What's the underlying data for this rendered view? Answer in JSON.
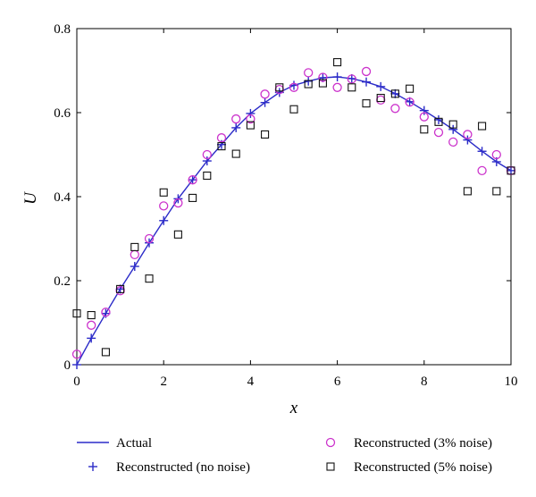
{
  "chart_data": {
    "type": "line",
    "xlabel": "x",
    "ylabel": "U",
    "xlim": [
      0,
      10
    ],
    "ylim": [
      0,
      0.8
    ],
    "xticks": [
      0,
      2,
      4,
      6,
      8,
      10
    ],
    "yticks": [
      0,
      0.2,
      0.4,
      0.6,
      0.8
    ],
    "ytick_labels": [
      "0",
      "0.2",
      "0.4",
      "0.6",
      "0.8"
    ],
    "grid": false,
    "legend_position": "bottom",
    "series": [
      {
        "name": "Actual",
        "style": "line",
        "color": "#2b2bc8",
        "x": [
          0,
          0.333,
          0.667,
          1.0,
          1.333,
          1.667,
          2.0,
          2.333,
          2.667,
          3.0,
          3.333,
          3.667,
          4.0,
          4.333,
          4.667,
          5.0,
          5.333,
          5.667,
          6.0,
          6.333,
          6.667,
          7.0,
          7.333,
          7.667,
          8.0,
          8.333,
          8.667,
          9.0,
          9.333,
          9.667,
          10.0
        ],
        "y": [
          0.0,
          0.063,
          0.122,
          0.18,
          0.234,
          0.29,
          0.343,
          0.395,
          0.44,
          0.485,
          0.524,
          0.564,
          0.598,
          0.624,
          0.648,
          0.665,
          0.675,
          0.683,
          0.685,
          0.681,
          0.673,
          0.662,
          0.645,
          0.626,
          0.605,
          0.583,
          0.56,
          0.535,
          0.508,
          0.483,
          0.462
        ]
      },
      {
        "name": "Reconstructed (no noise)",
        "style": "plus",
        "color": "#2b2bc8",
        "x": [
          0,
          0.333,
          0.667,
          1.0,
          1.333,
          1.667,
          2.0,
          2.333,
          2.667,
          3.0,
          3.333,
          3.667,
          4.0,
          4.333,
          4.667,
          5.0,
          5.333,
          5.667,
          6.0,
          6.333,
          6.667,
          7.0,
          7.333,
          7.667,
          8.0,
          8.333,
          8.667,
          9.0,
          9.333,
          9.667,
          10.0
        ],
        "y": [
          0.0,
          0.063,
          0.122,
          0.18,
          0.234,
          0.29,
          0.343,
          0.395,
          0.44,
          0.485,
          0.524,
          0.564,
          0.598,
          0.624,
          0.648,
          0.665,
          0.675,
          0.683,
          0.685,
          0.681,
          0.673,
          0.662,
          0.645,
          0.626,
          0.605,
          0.583,
          0.56,
          0.535,
          0.508,
          0.483,
          0.462
        ]
      },
      {
        "name": "Reconstructed (3% noise)",
        "style": "circle",
        "color": "#cc33cc",
        "x": [
          0,
          0.333,
          0.667,
          1.0,
          1.333,
          1.667,
          2.0,
          2.333,
          2.667,
          3.0,
          3.333,
          3.667,
          4.0,
          4.333,
          4.667,
          5.0,
          5.333,
          5.667,
          6.0,
          6.333,
          6.667,
          7.0,
          7.333,
          7.667,
          8.0,
          8.333,
          8.667,
          9.0,
          9.333,
          9.667,
          10.0
        ],
        "y": [
          0.025,
          0.094,
          0.125,
          0.176,
          0.262,
          0.3,
          0.378,
          0.385,
          0.44,
          0.5,
          0.54,
          0.585,
          0.585,
          0.644,
          0.655,
          0.66,
          0.695,
          0.684,
          0.66,
          0.68,
          0.698,
          0.63,
          0.61,
          0.625,
          0.59,
          0.553,
          0.53,
          0.548,
          0.462,
          0.5,
          0.462
        ]
      },
      {
        "name": "Reconstructed (5% noise)",
        "style": "square",
        "color": "#111111",
        "x": [
          0,
          0.333,
          0.667,
          1.0,
          1.333,
          1.667,
          2.0,
          2.333,
          2.667,
          3.0,
          3.333,
          3.667,
          4.0,
          4.333,
          4.667,
          5.0,
          5.333,
          5.667,
          6.0,
          6.333,
          6.667,
          7.0,
          7.333,
          7.667,
          8.0,
          8.333,
          8.667,
          9.0,
          9.333,
          9.667,
          10.0
        ],
        "y": [
          0.122,
          0.118,
          0.03,
          0.18,
          0.28,
          0.205,
          0.41,
          0.31,
          0.397,
          0.45,
          0.52,
          0.502,
          0.57,
          0.548,
          0.66,
          0.608,
          0.668,
          0.67,
          0.72,
          0.66,
          0.622,
          0.635,
          0.645,
          0.657,
          0.56,
          0.578,
          0.572,
          0.413,
          0.568,
          0.413,
          0.462
        ]
      }
    ]
  }
}
